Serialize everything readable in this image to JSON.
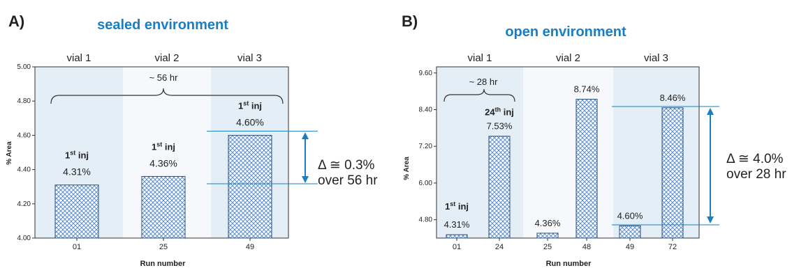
{
  "colors": {
    "title": "#1a7ec2",
    "band_shade": "#e4eef7",
    "band_light": "#f6f8fb",
    "bar_fill": "#5b8fd0",
    "bar_stroke": "#2a4d7a",
    "arrow": "#1a7ec2",
    "text": "#222222"
  },
  "chart_data": [
    {
      "panel_label": "A)",
      "title": "sealed environment",
      "type": "bar",
      "xlabel": "Run number",
      "ylabel": "% Area",
      "ylim": [
        4.0,
        5.0
      ],
      "yticks": [
        "4.00",
        "4.20",
        "4.40",
        "4.60",
        "4.80",
        "5.00"
      ],
      "categories": [
        "01",
        "25",
        "49"
      ],
      "values": [
        4.31,
        4.36,
        4.6
      ],
      "value_labels": [
        "4.31%",
        "4.36%",
        "4.60%"
      ],
      "bar_notes": [
        {
          "base": "1",
          "sup": "st",
          "rest": " inj"
        },
        {
          "base": "1",
          "sup": "st",
          "rest": " inj"
        },
        {
          "base": "1",
          "sup": "st",
          "rest": " inj"
        }
      ],
      "vials": [
        "vial 1",
        "vial 2",
        "vial 3"
      ],
      "bracket_label": "~ 56 hr",
      "delta_line1": "Δ ≅ 0.3%",
      "delta_line2": "over 56 hr"
    },
    {
      "panel_label": "B)",
      "title": "open environment",
      "type": "bar",
      "xlabel": "Run number",
      "ylabel": "% Area",
      "ylim": [
        4.2,
        9.8
      ],
      "yticks": [
        "4.80",
        "6.00",
        "7.20",
        "8.40",
        "9.60"
      ],
      "categories": [
        "01",
        "24",
        "25",
        "48",
        "49",
        "72"
      ],
      "values": [
        4.31,
        7.53,
        4.36,
        8.74,
        4.6,
        8.46
      ],
      "value_labels": [
        "4.31%",
        "7.53%",
        "4.36%",
        "8.74%",
        "4.60%",
        "8.46%"
      ],
      "bar_notes": [
        {
          "base": "1",
          "sup": "st",
          "rest": " inj"
        },
        {
          "base": "24",
          "sup": "th",
          "rest": " inj"
        }
      ],
      "vials": [
        "vial 1",
        "vial 2",
        "vial 3"
      ],
      "bracket_label": "~ 28 hr",
      "delta_line1": "Δ ≅ 4.0%",
      "delta_line2": "over 28 hr"
    }
  ]
}
